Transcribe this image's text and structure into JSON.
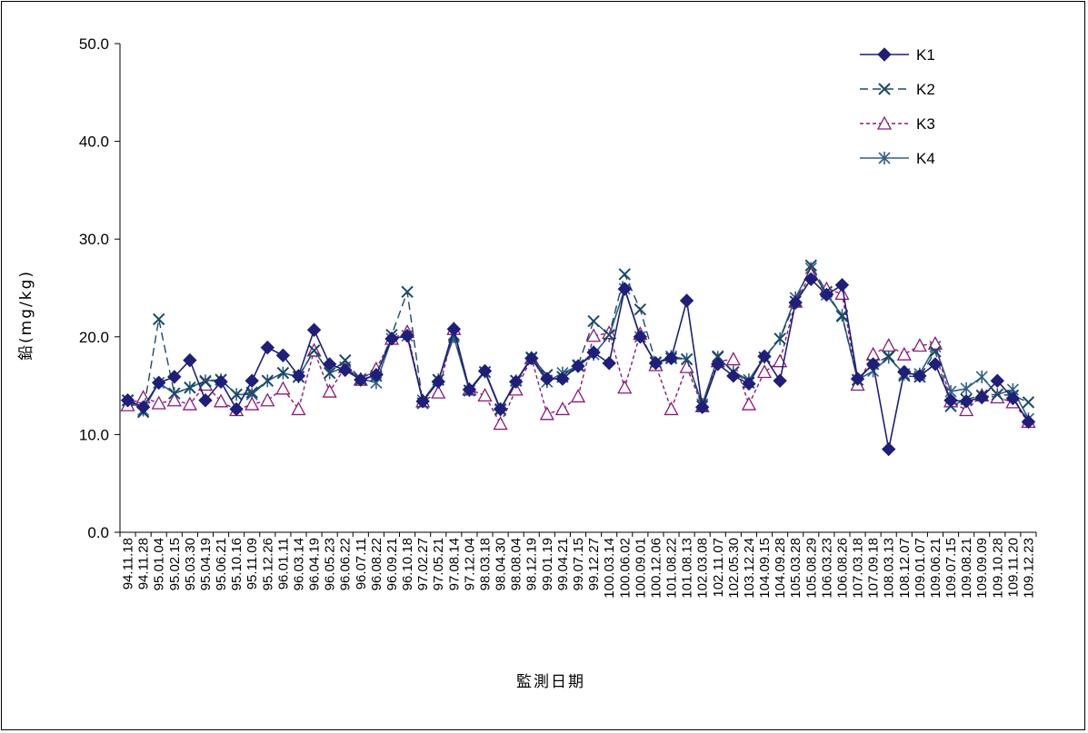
{
  "chart_data": {
    "type": "line",
    "title": "",
    "xlabel": "監測日期",
    "ylabel": "鉛(mg/kg)",
    "ylim": [
      0,
      50
    ],
    "ytick_labels": [
      "0.0",
      "10.0",
      "20.0",
      "30.0",
      "40.0",
      "50.0"
    ],
    "grid": false,
    "legend_position": "top-right",
    "categories": [
      "94.11.18",
      "94.11.28",
      "95.01.04",
      "95.02.15",
      "95.03.30",
      "95.04.19",
      "95.06.21",
      "95.10.16",
      "95.11.09",
      "95.12.26",
      "96.01.11",
      "96.03.14",
      "96.04.19",
      "96.05.23",
      "96.06.22",
      "96.07.11",
      "96.08.22",
      "96.09.21",
      "96.10.18",
      "97.02.27",
      "97.05.21",
      "97.08.14",
      "97.12.04",
      "98.03.18",
      "98.04.30",
      "98.08.04",
      "98.12.19",
      "99.01.19",
      "99.04.21",
      "99.07.15",
      "99.12.27",
      "100.03.14",
      "100.06.02",
      "100.09.01",
      "100.12.06",
      "101.08.22",
      "101.08.13",
      "102.03.08",
      "102.11.07",
      "102.05.30",
      "103.12.24",
      "104.09.15",
      "104.09.28",
      "105.03.28",
      "105.08.29",
      "106.03.23",
      "106.08.26",
      "107.03.18",
      "107.09.18",
      "108.03.13",
      "108.12.07",
      "109.01.07",
      "109.06.21",
      "109.07.15",
      "109.08.21",
      "109.09.09",
      "109.10.28",
      "109.11.20",
      "109.12.23"
    ],
    "x_tick_labels": [
      "94.11.18",
      "94.11.28",
      "95.01.04",
      "95.02.15",
      "95.03.30",
      "95.04.19",
      "95.06.21",
      "95.10.16",
      "95.11.09",
      "95.12.26",
      "96.01.11",
      "96.03.14",
      "96.04.19",
      "96.05.23",
      "96.06.22",
      "96.07.11",
      "96.08.22",
      "96.09.21",
      "96.10.18",
      "97.02.27",
      "97.05.21",
      "97.08.14",
      "97.12.04",
      "98.03.18",
      "98.04.30",
      "98.08.04",
      "98.12.19",
      "99.01.19",
      "99.04.21",
      "99.07.15",
      "99.12.27",
      "100.03.14",
      "100.06.02",
      "100.09.01",
      "100.12.06",
      "101.08.22",
      "101.08.13",
      "102.03.08",
      "102.11.07",
      "102.05.30",
      "103.12.24",
      "104.09.15",
      "104.09.28",
      "105.03.28",
      "105.08.29",
      "106.03.23",
      "106.08.26",
      "107.03.18",
      "107.09.18",
      "108.03.13",
      "108.12.07",
      "109.01.07",
      "109.06.21",
      "109.07.15",
      "109.08.21",
      "109.09.09",
      "109.10.28",
      "109.11.20",
      "109.12.23"
    ],
    "series": [
      {
        "name": "K1",
        "color": "#1F1F7A",
        "marker": "diamond",
        "line": "solid",
        "values": [
          13.5,
          12.8,
          15.3,
          15.9,
          17.6,
          13.5,
          15.4,
          12.6,
          15.5,
          18.9,
          18.1,
          16.0,
          20.7,
          17.2,
          16.6,
          15.6,
          16.1,
          19.8,
          20.1,
          13.4,
          15.4,
          20.8,
          14.6,
          16.5,
          12.6,
          15.4,
          17.8,
          15.7,
          15.7,
          17.0,
          18.4,
          17.3,
          24.9,
          20.0,
          17.3,
          17.8,
          23.7,
          12.8,
          17.2,
          16.0,
          15.2,
          18.0,
          15.5,
          23.5,
          25.9,
          24.3,
          25.3,
          15.7,
          17.2,
          8.5,
          16.4,
          16.0,
          17.2,
          13.5,
          13.4,
          13.8,
          15.5,
          13.7,
          11.3
        ]
      },
      {
        "name": "K2",
        "color": "#1B4A66",
        "marker": "x",
        "line": "dashed",
        "values": [
          13.5,
          12.3,
          21.8,
          14.2,
          14.8,
          15.4,
          15.6,
          14.1,
          14.3,
          15.5,
          16.3,
          15.9,
          18.6,
          16.3,
          17.6,
          15.6,
          16.0,
          20.2,
          24.6,
          13.2,
          15.6,
          20.2,
          14.5,
          16.4,
          12.6,
          15.5,
          17.9,
          16.1,
          15.9,
          17.1,
          21.6,
          20.2,
          26.4,
          22.8,
          17.4,
          17.8,
          17.7,
          12.9,
          18.0,
          16.4,
          15.3,
          17.9,
          19.8,
          23.6,
          27.3,
          24.6,
          22.1,
          15.6,
          17.2,
          18.0,
          16.0,
          15.9,
          18.5,
          12.9,
          13.6,
          14.0,
          14.1,
          14.0,
          13.3
        ]
      },
      {
        "name": "K3",
        "color": "#8B1A7A",
        "marker": "triangle",
        "line": "dotted",
        "values": [
          13.0,
          13.8,
          13.2,
          13.5,
          13.1,
          15.1,
          13.4,
          12.5,
          13.1,
          13.5,
          14.7,
          12.6,
          18.6,
          14.4,
          16.9,
          15.6,
          16.7,
          19.8,
          20.5,
          13.4,
          14.3,
          20.8,
          14.6,
          14.0,
          11.1,
          14.6,
          17.8,
          12.1,
          12.6,
          13.9,
          20.1,
          20.4,
          14.8,
          20.3,
          17.1,
          12.6,
          16.9,
          12.9,
          17.5,
          17.7,
          13.1,
          16.4,
          17.5,
          23.6,
          26.4,
          24.9,
          24.4,
          15.1,
          18.2,
          19.1,
          18.2,
          19.1,
          19.3,
          13.4,
          12.5,
          14.0,
          13.8,
          13.3,
          11.3
        ]
      },
      {
        "name": "K4",
        "color": "#2E5F8A",
        "marker": "asterisk",
        "line": "solid",
        "values": [
          13.5,
          12.5,
          15.3,
          14.2,
          14.8,
          15.5,
          15.6,
          14.1,
          14.1,
          15.5,
          16.3,
          15.9,
          18.6,
          16.3,
          16.9,
          15.7,
          15.3,
          19.8,
          20.1,
          13.5,
          15.6,
          20.0,
          14.5,
          16.4,
          12.5,
          15.5,
          17.8,
          15.4,
          16.3,
          17.0,
          18.2,
          20.1,
          24.9,
          20.0,
          17.3,
          18.0,
          17.7,
          13.1,
          17.9,
          16.4,
          15.6,
          17.9,
          19.8,
          24.0,
          27.0,
          24.3,
          22.2,
          15.6,
          16.5,
          17.9,
          16.2,
          16.2,
          19.0,
          14.4,
          14.7,
          15.9,
          14.1,
          14.6,
          11.6
        ]
      }
    ]
  }
}
